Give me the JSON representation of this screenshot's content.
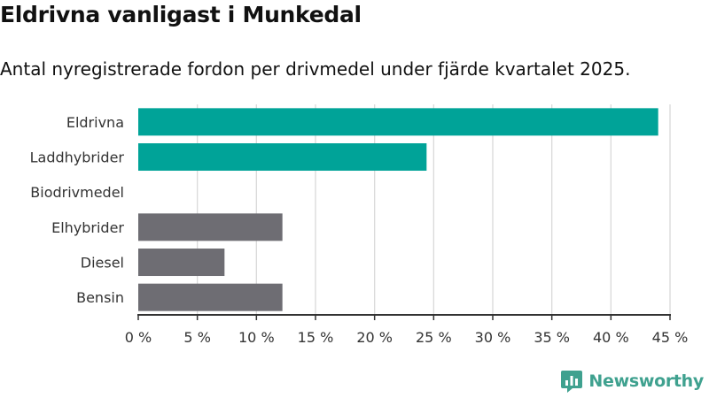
{
  "title": "Eldrivna vanligast i Munkedal",
  "subtitle": "Antal nyregistrerade fordon per drivmedel under fjärde kvartalet 2025.",
  "brand": "Newsworthy",
  "colors": {
    "highlight": "#00a398",
    "other": "#6e6d73",
    "grid": "#d9d9d9",
    "axis": "#333333"
  },
  "chart_data": {
    "type": "bar",
    "orientation": "horizontal",
    "categories": [
      "Eldrivna",
      "Laddhybrider",
      "Biodrivmedel",
      "Elhybrider",
      "Diesel",
      "Bensin"
    ],
    "values": [
      44,
      24.4,
      0,
      12.2,
      7.3,
      12.2
    ],
    "bar_colors": [
      "highlight",
      "highlight",
      "other",
      "other",
      "other",
      "other"
    ],
    "xlim": [
      0,
      45
    ],
    "xticks": [
      0,
      5,
      10,
      15,
      20,
      25,
      30,
      35,
      40,
      45
    ],
    "tick_labels": [
      "0 %",
      "5 %",
      "10 %",
      "15 %",
      "20 %",
      "25 %",
      "30 %",
      "35 %",
      "40 %",
      "45 %"
    ],
    "grid": true
  }
}
